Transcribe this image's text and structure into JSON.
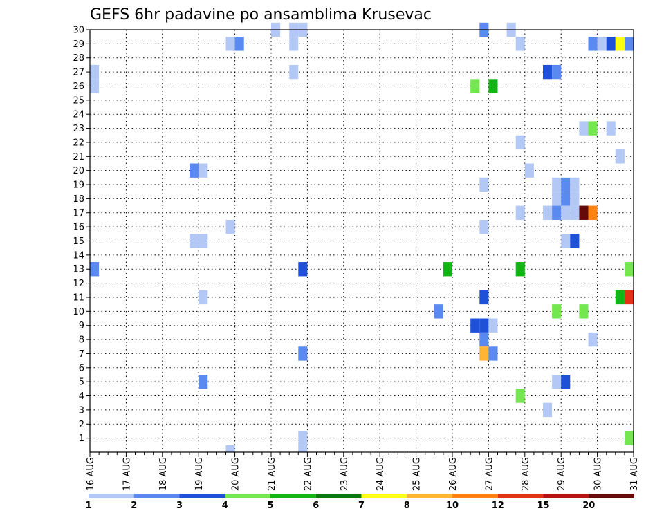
{
  "chart_data": {
    "type": "heatmap",
    "title": "GEFS 6hr padavine po ansamblima Krusevac",
    "xlabel": "",
    "ylabel": "",
    "x_tick_labels": [
      "16 AUG",
      "17 AUG",
      "18 AUG",
      "19 AUG",
      "20 AUG",
      "21 AUG",
      "22 AUG",
      "23 AUG",
      "24 AUG",
      "25 AUG",
      "26 AUG",
      "27 AUG",
      "28 AUG",
      "29 AUG",
      "30 AUG",
      "31 AUG"
    ],
    "y_tick_labels": [
      "1",
      "2",
      "3",
      "4",
      "5",
      "6",
      "7",
      "8",
      "9",
      "10",
      "11",
      "12",
      "13",
      "14",
      "15",
      "16",
      "17",
      "18",
      "19",
      "20",
      "21",
      "22",
      "23",
      "24",
      "25",
      "26",
      "27",
      "28",
      "29",
      "30"
    ],
    "x_range_days": [
      16,
      31
    ],
    "y_range": [
      0,
      30
    ],
    "grid": "dotted",
    "color_scale": {
      "labels": [
        "1",
        "2",
        "3",
        "4",
        "5",
        "6",
        "7",
        "8",
        "10",
        "12",
        "15",
        "20"
      ],
      "colors": [
        "#b4c8f5",
        "#5a8af0",
        "#1e50d8",
        "#73e650",
        "#14b414",
        "#0a780a",
        "#ffff14",
        "#ffb432",
        "#ff8214",
        "#e63214",
        "#b41414",
        "#640a0a"
      ]
    },
    "cells": [
      {
        "day": 16.0,
        "member": 13,
        "level": 2
      },
      {
        "day": 16.0,
        "member": 26,
        "level": 1
      },
      {
        "day": 16.0,
        "member": 27,
        "level": 1
      },
      {
        "day": 18.75,
        "member": 20,
        "level": 2
      },
      {
        "day": 19.0,
        "member": 20,
        "level": 1
      },
      {
        "day": 19.0,
        "member": 5,
        "level": 2
      },
      {
        "day": 19.0,
        "member": 11,
        "level": 1
      },
      {
        "day": 18.75,
        "member": 15,
        "level": 1
      },
      {
        "day": 19.0,
        "member": 15,
        "level": 1
      },
      {
        "day": 19.75,
        "member": 16,
        "level": 1
      },
      {
        "day": 19.75,
        "member": 29,
        "level": 1
      },
      {
        "day": 20.0,
        "member": 29,
        "level": 2
      },
      {
        "day": 19.75,
        "member": 0,
        "level": 1
      },
      {
        "day": 21.0,
        "member": 30,
        "level": 1
      },
      {
        "day": 21.5,
        "member": 30,
        "level": 1
      },
      {
        "day": 21.75,
        "member": 30,
        "level": 1
      },
      {
        "day": 21.5,
        "member": 29,
        "level": 1
      },
      {
        "day": 21.5,
        "member": 27,
        "level": 1
      },
      {
        "day": 21.75,
        "member": 13,
        "level": 3
      },
      {
        "day": 21.75,
        "member": 7,
        "level": 2
      },
      {
        "day": 21.75,
        "member": 1,
        "level": 1
      },
      {
        "day": 21.75,
        "member": 0,
        "level": 1
      },
      {
        "day": 25.5,
        "member": 10,
        "level": 2
      },
      {
        "day": 25.75,
        "member": 13,
        "level": 5
      },
      {
        "day": 26.5,
        "member": 26,
        "level": 4
      },
      {
        "day": 27.0,
        "member": 26,
        "level": 5
      },
      {
        "day": 26.5,
        "member": 9,
        "level": 3
      },
      {
        "day": 26.75,
        "member": 9,
        "level": 3
      },
      {
        "day": 27.0,
        "member": 9,
        "level": 1
      },
      {
        "day": 26.75,
        "member": 30,
        "level": 2
      },
      {
        "day": 26.75,
        "member": 19,
        "level": 1
      },
      {
        "day": 26.75,
        "member": 16,
        "level": 1
      },
      {
        "day": 26.75,
        "member": 11,
        "level": 3
      },
      {
        "day": 26.75,
        "member": 8,
        "level": 2
      },
      {
        "day": 26.75,
        "member": 7,
        "level": 8
      },
      {
        "day": 27.0,
        "member": 7,
        "level": 2
      },
      {
        "day": 27.5,
        "member": 30,
        "level": 1
      },
      {
        "day": 27.75,
        "member": 29,
        "level": 1
      },
      {
        "day": 27.75,
        "member": 22,
        "level": 1
      },
      {
        "day": 27.75,
        "member": 17,
        "level": 1
      },
      {
        "day": 27.75,
        "member": 13,
        "level": 5
      },
      {
        "day": 27.75,
        "member": 4,
        "level": 4
      },
      {
        "day": 28.0,
        "member": 20,
        "level": 1
      },
      {
        "day": 28.5,
        "member": 27,
        "level": 3
      },
      {
        "day": 28.75,
        "member": 27,
        "level": 2
      },
      {
        "day": 28.5,
        "member": 17,
        "level": 1
      },
      {
        "day": 28.5,
        "member": 3,
        "level": 1
      },
      {
        "day": 28.75,
        "member": 19,
        "level": 1
      },
      {
        "day": 28.75,
        "member": 18,
        "level": 1
      },
      {
        "day": 28.75,
        "member": 17,
        "level": 2
      },
      {
        "day": 28.75,
        "member": 10,
        "level": 4
      },
      {
        "day": 28.75,
        "member": 5,
        "level": 1
      },
      {
        "day": 29.0,
        "member": 19,
        "level": 2
      },
      {
        "day": 29.0,
        "member": 18,
        "level": 2
      },
      {
        "day": 29.0,
        "member": 17,
        "level": 1
      },
      {
        "day": 29.0,
        "member": 15,
        "level": 1
      },
      {
        "day": 29.0,
        "member": 5,
        "level": 3
      },
      {
        "day": 29.25,
        "member": 19,
        "level": 1
      },
      {
        "day": 29.25,
        "member": 18,
        "level": 1
      },
      {
        "day": 29.25,
        "member": 17,
        "level": 1
      },
      {
        "day": 29.25,
        "member": 15,
        "level": 3
      },
      {
        "day": 29.5,
        "member": 23,
        "level": 1
      },
      {
        "day": 29.5,
        "member": 17,
        "level": 12
      },
      {
        "day": 29.5,
        "member": 10,
        "level": 4
      },
      {
        "day": 29.75,
        "member": 23,
        "level": 4
      },
      {
        "day": 29.75,
        "member": 17,
        "level": 9
      },
      {
        "day": 29.75,
        "member": 29,
        "level": 2
      },
      {
        "day": 29.75,
        "member": 8,
        "level": 1
      },
      {
        "day": 30.0,
        "member": 29,
        "level": 1
      },
      {
        "day": 30.25,
        "member": 29,
        "level": 3
      },
      {
        "day": 30.25,
        "member": 23,
        "level": 1
      },
      {
        "day": 30.5,
        "member": 29,
        "level": 7
      },
      {
        "day": 30.5,
        "member": 21,
        "level": 1
      },
      {
        "day": 30.5,
        "member": 11,
        "level": 5
      },
      {
        "day": 30.75,
        "member": 29,
        "level": 2
      },
      {
        "day": 30.75,
        "member": 13,
        "level": 4
      },
      {
        "day": 30.75,
        "member": 11,
        "level": 10
      },
      {
        "day": 30.75,
        "member": 1,
        "level": 4
      }
    ]
  }
}
